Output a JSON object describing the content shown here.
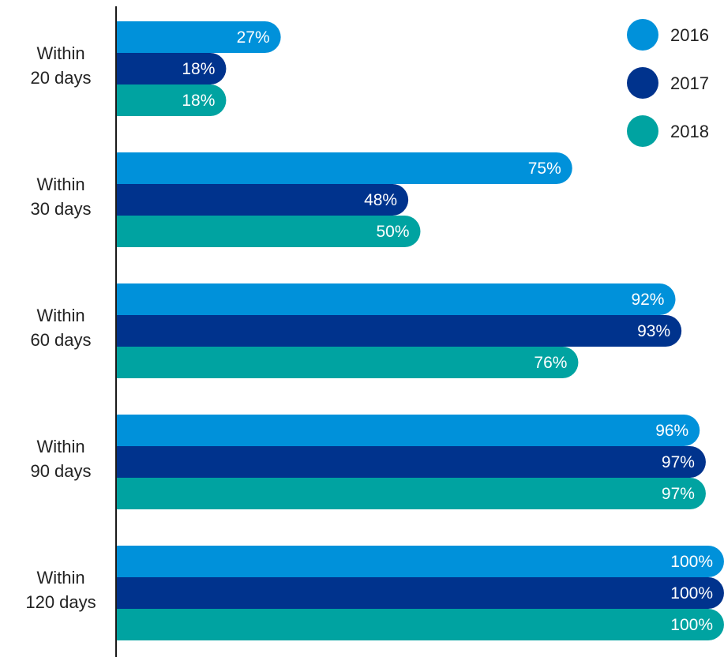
{
  "chart_data": {
    "type": "bar",
    "orientation": "horizontal",
    "title": "",
    "xlabel": "",
    "ylabel": "",
    "xlim": [
      0,
      100
    ],
    "grid": false,
    "legend_position": "top-right",
    "categories": [
      [
        "Within",
        "20 days"
      ],
      [
        "Within",
        "30 days"
      ],
      [
        "Within",
        "60 days"
      ],
      [
        "Within",
        "90 days"
      ],
      [
        "Within",
        "120 days"
      ]
    ],
    "series": [
      {
        "name": "2016",
        "color": "#0091DA",
        "values": [
          27,
          75,
          92,
          96,
          100
        ],
        "labels": [
          "27%",
          "75%",
          "92%",
          "96%",
          "100%"
        ]
      },
      {
        "name": "2017",
        "color": "#00338D",
        "values": [
          18,
          48,
          93,
          97,
          100
        ],
        "labels": [
          "18%",
          "48%",
          "93%",
          "97%",
          "100%"
        ]
      },
      {
        "name": "2018",
        "color": "#00A3A1",
        "values": [
          18,
          50,
          76,
          97,
          100
        ],
        "labels": [
          "18%",
          "50%",
          "76%",
          "97%",
          "100%"
        ]
      }
    ]
  }
}
